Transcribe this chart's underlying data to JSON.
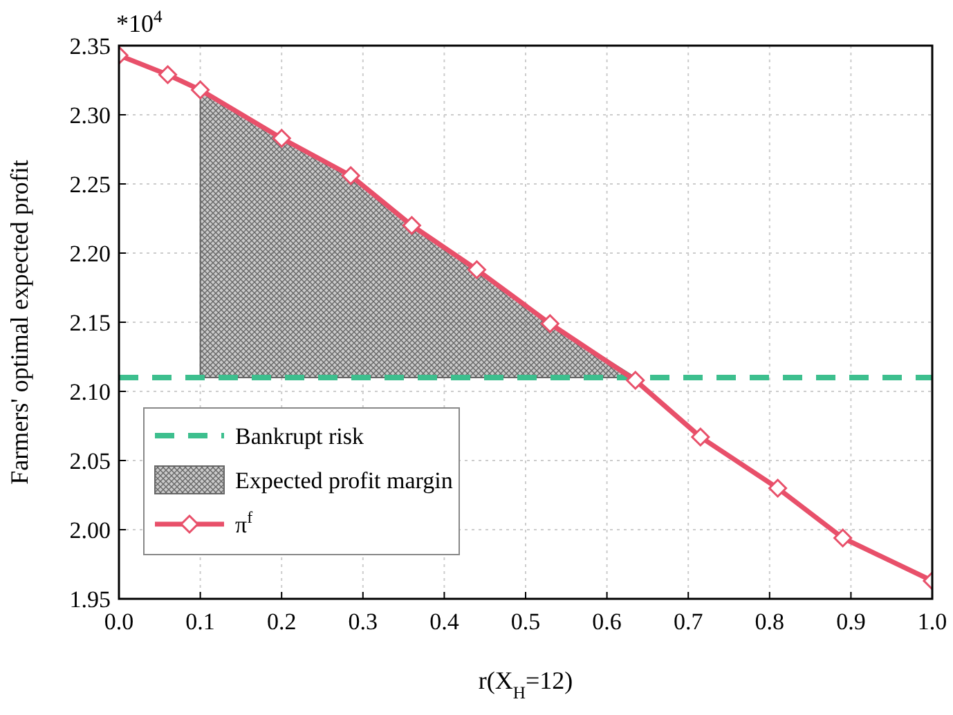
{
  "chart_data": {
    "type": "line",
    "xlabel": "r(X$_{H}$=12)",
    "ylabel": "Farmers' optimal expected profit",
    "annotations": [
      "*10$^{4}$"
    ],
    "xlim": [
      0,
      1
    ],
    "xticks": [
      {
        "value": 0,
        "label": "0.0"
      },
      0.1,
      0.2,
      0.3,
      0.4,
      0.5,
      0.6,
      0.7,
      0.8,
      0.9,
      {
        "value": 1,
        "label": "1.0"
      }
    ],
    "ylim": [
      1.95,
      2.35
    ],
    "yticks": [
      1.95,
      {
        "value": 2,
        "label": "2.00"
      },
      2.05,
      {
        "value": 2.1,
        "label": "2.10"
      },
      2.15,
      {
        "value": 2.2,
        "label": "2.20"
      },
      2.25,
      {
        "value": 2.3,
        "label": "2.30"
      },
      2.35
    ],
    "grid": true,
    "legend": "bottom left",
    "marker": "diamond",
    "line_style": "solid",
    "ref_lines": [
      {
        "axis": "y",
        "value": 2.11,
        "label": "Bankrupt risk",
        "color": "#3dbf8e",
        "line_style": "dashed"
      }
    ],
    "series": [
      {
        "type": "area",
        "name": "Expected profit margin",
        "color": "#666666",
        "marker": "none",
        "x": [
          0.1,
          0.2,
          0.285,
          0.36,
          0.44,
          0.53,
          0.635
        ],
        "values": [
          2.318,
          2.283,
          2.256,
          2.22,
          2.188,
          2.149,
          2.11
        ]
      },
      {
        "type": "line",
        "name": "π$^{f}$",
        "color": "#e8506a",
        "x": [
          0,
          0.06,
          0.1,
          0.2,
          0.285,
          0.36,
          0.44,
          0.53,
          0.635,
          0.715,
          0.81,
          0.89,
          1
        ],
        "values": [
          2.343,
          2.329,
          2.318,
          2.283,
          2.256,
          2.22,
          2.188,
          2.149,
          2.108,
          2.067,
          2.03,
          1.994,
          1.963
        ]
      }
    ]
  }
}
